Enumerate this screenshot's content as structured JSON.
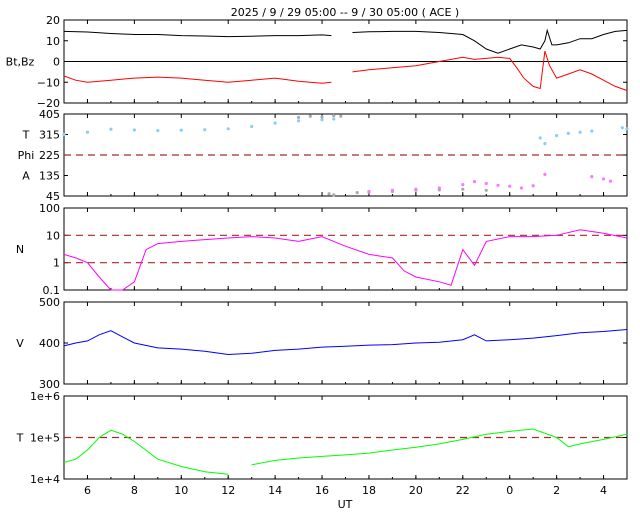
{
  "title": "2025 /  9 / 29   05:00 -- 9 / 30   05:00 ( ACE )",
  "xlabel": "UT",
  "x_ticks": [
    "6",
    "8",
    "10",
    "12",
    "14",
    "16",
    "18",
    "20",
    "22",
    "0",
    "2",
    "4"
  ],
  "x_tick_hours": [
    6,
    8,
    10,
    12,
    14,
    16,
    18,
    20,
    22,
    24,
    26,
    28
  ],
  "x_range_hours": [
    5,
    29
  ],
  "colors": {
    "bt": "#000000",
    "bz": "#ff0000",
    "temperature_points": "#87cefa",
    "phi_points": "#aaaaaa",
    "alpha_points": "#ff77ff",
    "density": "#ff00ff",
    "velocity": "#0000ff",
    "temperature": "#00ff00",
    "reference_line": "#a52a2a"
  },
  "chart_data": [
    {
      "id": "magnetic-field",
      "type": "line",
      "ylabel": "Bt,Bz",
      "ylim": [
        -20,
        20
      ],
      "y_ticks": [
        "20",
        "10",
        "0",
        "−10",
        "−20"
      ],
      "y_tick_values": [
        20,
        10,
        0,
        -10,
        -20
      ],
      "zero_line": 0,
      "data_gap_hours": [
        16.4,
        17.3
      ],
      "series": [
        {
          "key": "bt",
          "points": [
            [
              5,
              14.5
            ],
            [
              6,
              14.2
            ],
            [
              7,
              13.5
            ],
            [
              8,
              13
            ],
            [
              9,
              13
            ],
            [
              10,
              12.5
            ],
            [
              11,
              12.3
            ],
            [
              12,
              12
            ],
            [
              13,
              12.2
            ],
            [
              14,
              12.5
            ],
            [
              15,
              12.5
            ],
            [
              16,
              12.8
            ],
            [
              16.4,
              12.5
            ],
            [
              17.3,
              14
            ],
            [
              18,
              14.3
            ],
            [
              19,
              14.5
            ],
            [
              20,
              14.5
            ],
            [
              21,
              14
            ],
            [
              22,
              13
            ],
            [
              22.5,
              10
            ],
            [
              23,
              6
            ],
            [
              23.5,
              4
            ],
            [
              24,
              6
            ],
            [
              24.5,
              8
            ],
            [
              25,
              7
            ],
            [
              25.3,
              6
            ],
            [
              25.5,
              10
            ],
            [
              25.6,
              15
            ],
            [
              25.8,
              8
            ],
            [
              26,
              8
            ],
            [
              26.5,
              9
            ],
            [
              27,
              11
            ],
            [
              27.5,
              11
            ],
            [
              28,
              13
            ],
            [
              28.5,
              14.5
            ],
            [
              29,
              15
            ]
          ]
        },
        {
          "key": "bz",
          "points": [
            [
              5,
              -7
            ],
            [
              5.5,
              -9
            ],
            [
              6,
              -10
            ],
            [
              7,
              -9
            ],
            [
              8,
              -8
            ],
            [
              9,
              -7.5
            ],
            [
              10,
              -8
            ],
            [
              11,
              -9
            ],
            [
              12,
              -10
            ],
            [
              13,
              -9
            ],
            [
              14,
              -8
            ],
            [
              15,
              -9.5
            ],
            [
              16,
              -10.5
            ],
            [
              16.4,
              -10
            ],
            [
              17.3,
              -5
            ],
            [
              18,
              -4
            ],
            [
              19,
              -3
            ],
            [
              20,
              -2
            ],
            [
              21,
              0
            ],
            [
              22,
              2
            ],
            [
              22.5,
              1
            ],
            [
              23,
              1.5
            ],
            [
              23.5,
              2
            ],
            [
              24,
              1.5
            ],
            [
              24.3,
              -3
            ],
            [
              24.6,
              -8
            ],
            [
              25,
              -12
            ],
            [
              25.3,
              -13
            ],
            [
              25.5,
              5
            ],
            [
              25.7,
              -2
            ],
            [
              26,
              -8
            ],
            [
              26.5,
              -6
            ],
            [
              27,
              -4
            ],
            [
              27.5,
              -6
            ],
            [
              28,
              -9
            ],
            [
              28.5,
              -12
            ],
            [
              29,
              -14
            ]
          ]
        }
      ]
    },
    {
      "id": "angles",
      "type": "scatter",
      "ylabels": [
        "T",
        "Phi",
        "A"
      ],
      "ylim": [
        45,
        405
      ],
      "y_ticks": [
        "405",
        "315",
        "225",
        "135",
        "45"
      ],
      "y_tick_values": [
        405,
        315,
        225,
        135,
        45
      ],
      "reference_lines": [
        225
      ],
      "series": [
        {
          "key": "temperature_points",
          "points": [
            [
              5,
              315
            ],
            [
              6,
              325
            ],
            [
              7,
              338
            ],
            [
              8,
              335
            ],
            [
              9,
              332
            ],
            [
              10,
              334
            ],
            [
              11,
              336
            ],
            [
              12,
              340
            ],
            [
              13,
              350
            ],
            [
              14,
              365
            ],
            [
              15,
              375
            ],
            [
              16,
              380
            ],
            [
              16.5,
              383
            ],
            [
              25.3,
              300
            ],
            [
              25.5,
              275
            ],
            [
              26,
              310
            ],
            [
              26.5,
              320
            ],
            [
              27,
              325
            ],
            [
              27.5,
              330
            ],
            [
              28.8,
              345
            ],
            [
              29,
              340
            ]
          ]
        },
        {
          "key": "phi_points",
          "points": [
            [
              15,
              390
            ],
            [
              15.5,
              395
            ],
            [
              16,
              392
            ],
            [
              16.5,
              398
            ],
            [
              16.8,
              395
            ],
            [
              16.3,
              55
            ],
            [
              16.5,
              50
            ],
            [
              17.5,
              60
            ],
            [
              18,
              62
            ],
            [
              19,
              65
            ],
            [
              20,
              70
            ],
            [
              21,
              72
            ],
            [
              22,
              75
            ],
            [
              23,
              70
            ]
          ]
        },
        {
          "key": "alpha_points",
          "points": [
            [
              18,
              65
            ],
            [
              19,
              70
            ],
            [
              20,
              75
            ],
            [
              21,
              80
            ],
            [
              22,
              95
            ],
            [
              22.5,
              108
            ],
            [
              23,
              100
            ],
            [
              23.5,
              92
            ],
            [
              24,
              88
            ],
            [
              24.5,
              80
            ],
            [
              25,
              90
            ],
            [
              25.5,
              140
            ],
            [
              27.5,
              130
            ],
            [
              28,
              120
            ],
            [
              28.3,
              110
            ]
          ]
        }
      ]
    },
    {
      "id": "density",
      "type": "line",
      "ylabel": "N",
      "scale": "log",
      "ylim": [
        0.1,
        100
      ],
      "y_ticks": [
        "100",
        "10",
        "1",
        "0.1"
      ],
      "y_tick_values": [
        100,
        10,
        1,
        0.1
      ],
      "reference_lines": [
        10,
        1
      ],
      "series": [
        {
          "key": "density",
          "points": [
            [
              5,
              2
            ],
            [
              5.5,
              1.5
            ],
            [
              6,
              1
            ],
            [
              6.5,
              0.3
            ],
            [
              7,
              0.1
            ],
            [
              7.5,
              0.1
            ],
            [
              8,
              0.2
            ],
            [
              8.5,
              3
            ],
            [
              9,
              5
            ],
            [
              10,
              6
            ],
            [
              11,
              7
            ],
            [
              12,
              8
            ],
            [
              13,
              9
            ],
            [
              14,
              8
            ],
            [
              15,
              6
            ],
            [
              16,
              9
            ],
            [
              17,
              4
            ],
            [
              18,
              2
            ],
            [
              19,
              1.5
            ],
            [
              19.5,
              0.5
            ],
            [
              20,
              0.3
            ],
            [
              21,
              0.2
            ],
            [
              21.5,
              0.15
            ],
            [
              22,
              3
            ],
            [
              22.5,
              0.8
            ],
            [
              23,
              6
            ],
            [
              24,
              9
            ],
            [
              25,
              9
            ],
            [
              26,
              10
            ],
            [
              27,
              16
            ],
            [
              28,
              12
            ],
            [
              29,
              8
            ]
          ]
        }
      ]
    },
    {
      "id": "velocity",
      "type": "line",
      "ylabel": "V",
      "ylim": [
        300,
        500
      ],
      "y_ticks": [
        "500",
        "400",
        "300"
      ],
      "y_tick_values": [
        500,
        400,
        300
      ],
      "series": [
        {
          "key": "velocity",
          "points": [
            [
              5,
              393
            ],
            [
              5.5,
              400
            ],
            [
              6,
              405
            ],
            [
              6.5,
              420
            ],
            [
              7,
              430
            ],
            [
              7.5,
              415
            ],
            [
              8,
              400
            ],
            [
              9,
              388
            ],
            [
              10,
              385
            ],
            [
              11,
              380
            ],
            [
              12,
              372
            ],
            [
              13,
              375
            ],
            [
              14,
              382
            ],
            [
              15,
              385
            ],
            [
              16,
              390
            ],
            [
              17,
              392
            ],
            [
              18,
              395
            ],
            [
              19,
              396
            ],
            [
              20,
              400
            ],
            [
              21,
              402
            ],
            [
              22,
              408
            ],
            [
              22.5,
              420
            ],
            [
              23,
              405
            ],
            [
              24,
              408
            ],
            [
              25,
              412
            ],
            [
              26,
              418
            ],
            [
              27,
              425
            ],
            [
              28,
              428
            ],
            [
              29,
              433
            ]
          ]
        }
      ]
    },
    {
      "id": "temperature",
      "type": "line",
      "ylabel": "T",
      "scale": "log",
      "ylim": [
        10000,
        1000000
      ],
      "y_ticks": [
        "1e+6",
        "1e+5",
        "1e+4"
      ],
      "y_tick_values": [
        1000000,
        100000,
        10000
      ],
      "reference_lines": [
        100000
      ],
      "data_gap_hours": [
        12,
        13
      ],
      "series": [
        {
          "key": "temperature",
          "points": [
            [
              5,
              25000
            ],
            [
              5.5,
              30000
            ],
            [
              6,
              50000
            ],
            [
              6.5,
              100000
            ],
            [
              7,
              150000
            ],
            [
              7.5,
              120000
            ],
            [
              8,
              80000
            ],
            [
              9,
              30000
            ],
            [
              10,
              20000
            ],
            [
              11,
              15000
            ],
            [
              12,
              13000
            ],
            [
              13,
              22000
            ],
            [
              14,
              28000
            ],
            [
              15,
              32000
            ],
            [
              16,
              35000
            ],
            [
              17,
              38000
            ],
            [
              18,
              42000
            ],
            [
              19,
              50000
            ],
            [
              20,
              58000
            ],
            [
              21,
              70000
            ],
            [
              22,
              90000
            ],
            [
              23,
              120000
            ],
            [
              24,
              140000
            ],
            [
              25,
              160000
            ],
            [
              26,
              100000
            ],
            [
              26.5,
              60000
            ],
            [
              27,
              70000
            ],
            [
              28,
              90000
            ],
            [
              29,
              120000
            ]
          ]
        }
      ]
    }
  ]
}
